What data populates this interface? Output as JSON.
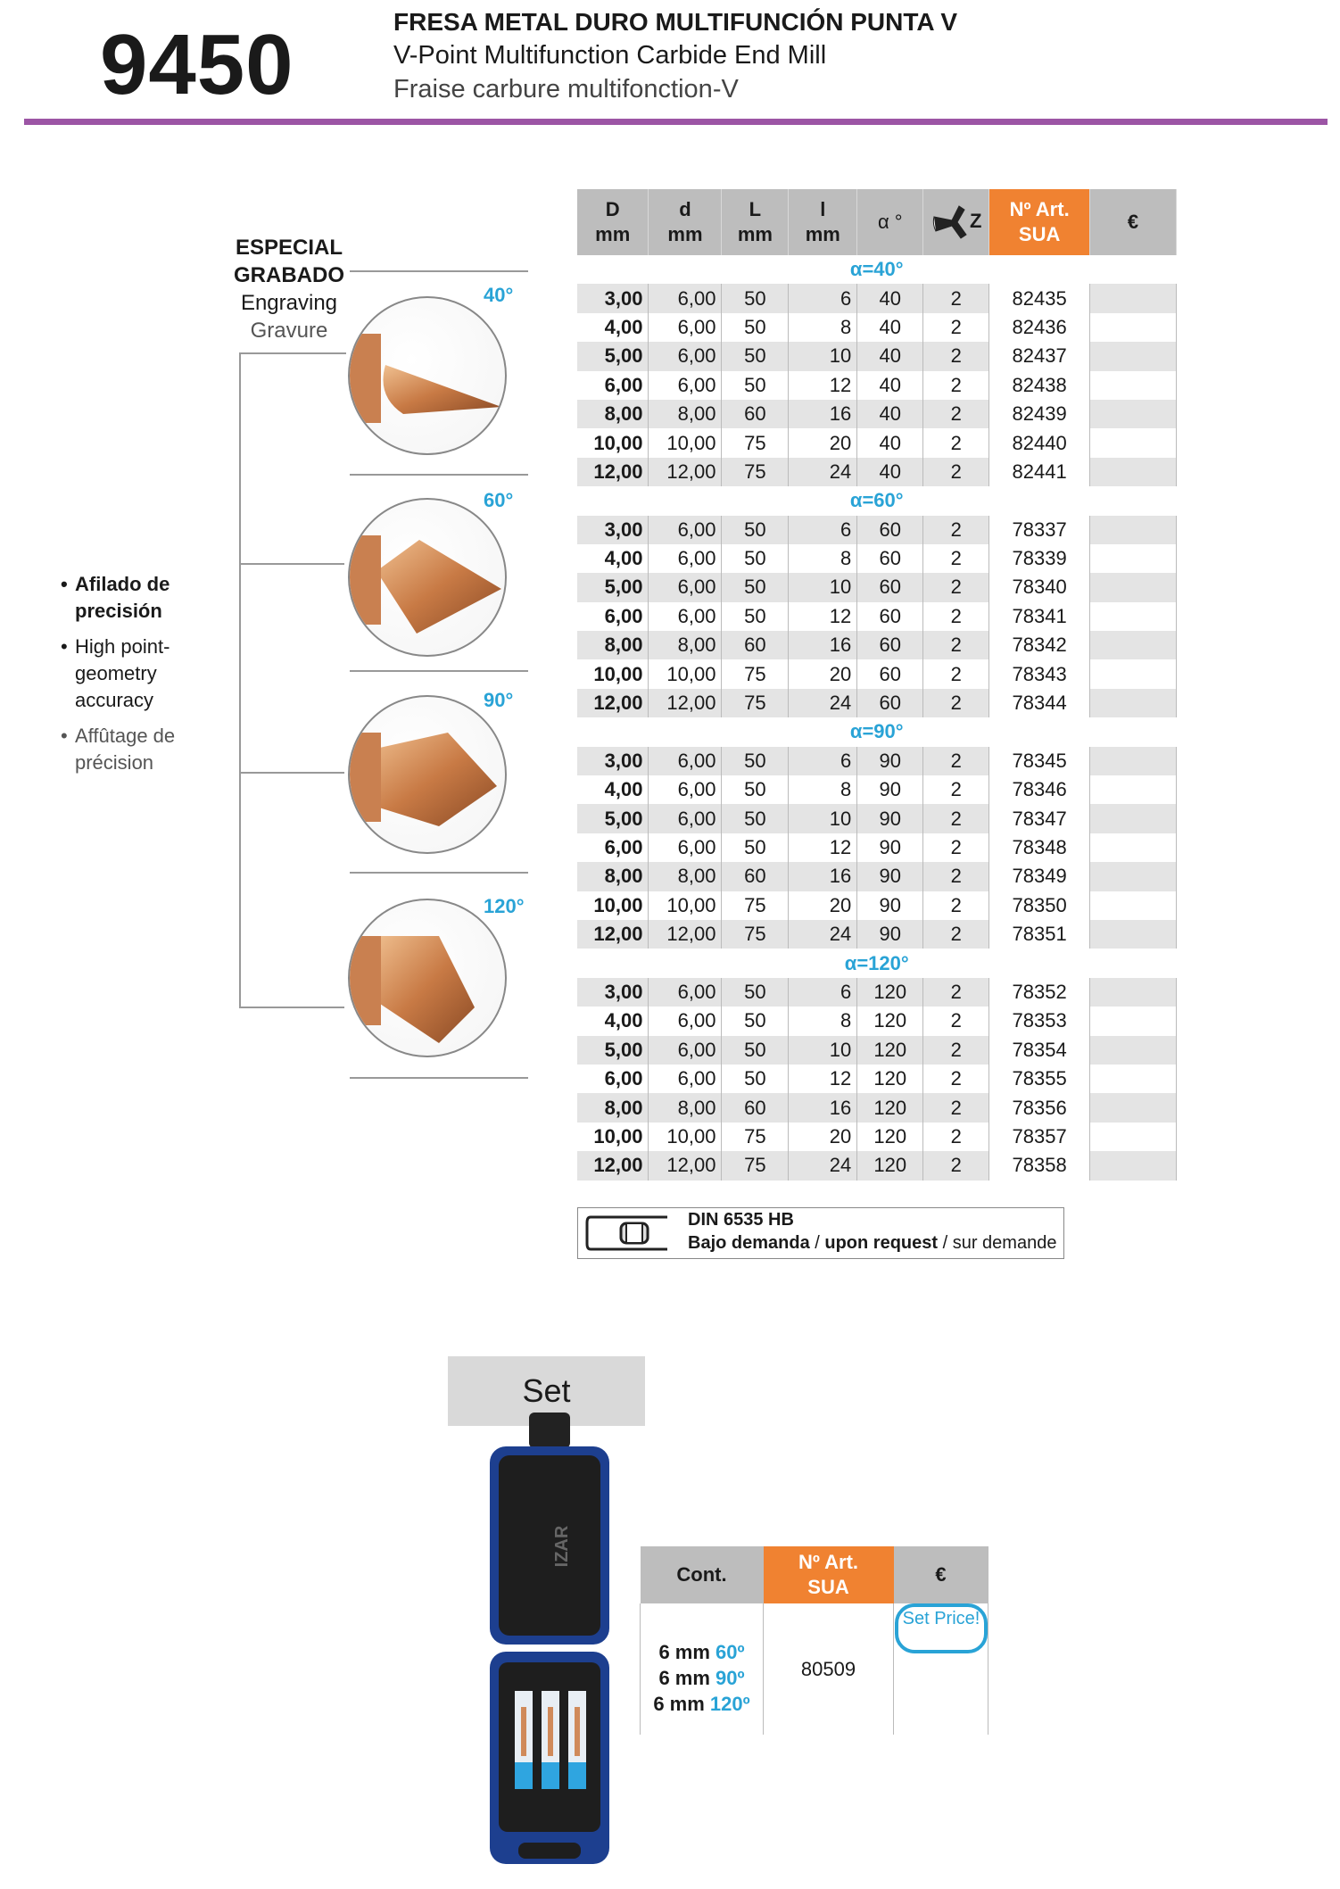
{
  "header": {
    "code": "9450",
    "title_es": "FRESA METAL DURO MULTIFUNCIÓN PUNTA V",
    "title_en": "V-Point Multifunction Carbide End Mill",
    "title_fr": "Fraise carbure multifonction-V"
  },
  "colors": {
    "accent_purple": "#9c55a5",
    "orange": "#f08231",
    "blue": "#29a3d6",
    "header_gray": "#bdbdbd"
  },
  "left": {
    "special_es": "ESPECIAL",
    "special_es2": "GRABADO",
    "special_en": "Engraving",
    "special_fr": "Gravure",
    "angles": [
      "40°",
      "60°",
      "90°",
      "120°"
    ],
    "bullets": [
      {
        "text": "Afilado de precisión",
        "bold": true
      },
      {
        "text": "High point-geometry accuracy"
      },
      {
        "text": "Affûtage de précision"
      }
    ]
  },
  "table": {
    "headers": [
      [
        "D",
        "mm"
      ],
      [
        "d",
        "mm"
      ],
      [
        "L",
        "mm"
      ],
      [
        "l",
        "mm"
      ],
      [
        "α °",
        ""
      ],
      [
        "Z",
        ""
      ],
      [
        "Nº Art.",
        "SUA"
      ],
      [
        "€",
        ""
      ]
    ],
    "z_icon": "flute-cross-section-icon",
    "sections": [
      {
        "label": "α=40°",
        "rows": [
          [
            "3,00",
            "6,00",
            "50",
            "6",
            "40",
            "2",
            "82435"
          ],
          [
            "4,00",
            "6,00",
            "50",
            "8",
            "40",
            "2",
            "82436"
          ],
          [
            "5,00",
            "6,00",
            "50",
            "10",
            "40",
            "2",
            "82437"
          ],
          [
            "6,00",
            "6,00",
            "50",
            "12",
            "40",
            "2",
            "82438"
          ],
          [
            "8,00",
            "8,00",
            "60",
            "16",
            "40",
            "2",
            "82439"
          ],
          [
            "10,00",
            "10,00",
            "75",
            "20",
            "40",
            "2",
            "82440"
          ],
          [
            "12,00",
            "12,00",
            "75",
            "24",
            "40",
            "2",
            "82441"
          ]
        ]
      },
      {
        "label": "α=60°",
        "rows": [
          [
            "3,00",
            "6,00",
            "50",
            "6",
            "60",
            "2",
            "78337"
          ],
          [
            "4,00",
            "6,00",
            "50",
            "8",
            "60",
            "2",
            "78339"
          ],
          [
            "5,00",
            "6,00",
            "50",
            "10",
            "60",
            "2",
            "78340"
          ],
          [
            "6,00",
            "6,00",
            "50",
            "12",
            "60",
            "2",
            "78341"
          ],
          [
            "8,00",
            "8,00",
            "60",
            "16",
            "60",
            "2",
            "78342"
          ],
          [
            "10,00",
            "10,00",
            "75",
            "20",
            "60",
            "2",
            "78343"
          ],
          [
            "12,00",
            "12,00",
            "75",
            "24",
            "60",
            "2",
            "78344"
          ]
        ]
      },
      {
        "label": "α=90°",
        "rows": [
          [
            "3,00",
            "6,00",
            "50",
            "6",
            "90",
            "2",
            "78345"
          ],
          [
            "4,00",
            "6,00",
            "50",
            "8",
            "90",
            "2",
            "78346"
          ],
          [
            "5,00",
            "6,00",
            "50",
            "10",
            "90",
            "2",
            "78347"
          ],
          [
            "6,00",
            "6,00",
            "50",
            "12",
            "90",
            "2",
            "78348"
          ],
          [
            "8,00",
            "8,00",
            "60",
            "16",
            "90",
            "2",
            "78349"
          ],
          [
            "10,00",
            "10,00",
            "75",
            "20",
            "90",
            "2",
            "78350"
          ],
          [
            "12,00",
            "12,00",
            "75",
            "24",
            "90",
            "2",
            "78351"
          ]
        ]
      },
      {
        "label": "α=120°",
        "rows": [
          [
            "3,00",
            "6,00",
            "50",
            "6",
            "120",
            "2",
            "78352"
          ],
          [
            "4,00",
            "6,00",
            "50",
            "8",
            "120",
            "2",
            "78353"
          ],
          [
            "5,00",
            "6,00",
            "50",
            "10",
            "120",
            "2",
            "78354"
          ],
          [
            "6,00",
            "6,00",
            "50",
            "12",
            "120",
            "2",
            "78355"
          ],
          [
            "8,00",
            "8,00",
            "60",
            "16",
            "120",
            "2",
            "78356"
          ],
          [
            "10,00",
            "10,00",
            "75",
            "20",
            "120",
            "2",
            "78357"
          ],
          [
            "12,00",
            "12,00",
            "75",
            "24",
            "120",
            "2",
            "78358"
          ]
        ]
      }
    ]
  },
  "din": {
    "line1": "DIN 6535 HB",
    "es": "Bajo demanda",
    "en": "upon request",
    "fr": "sur demande",
    "sep": " / "
  },
  "set": {
    "title": "Set",
    "headers": {
      "cont": "Cont.",
      "art1": "Nº Art.",
      "art2": "SUA",
      "price": "€"
    },
    "contents": [
      {
        "size": "6 mm",
        "angle": "60º"
      },
      {
        "size": "6 mm",
        "angle": "90º"
      },
      {
        "size": "6 mm",
        "angle": "120º"
      }
    ],
    "art": "80509",
    "badge": "Set Price!",
    "case_brand": "IZAR"
  }
}
